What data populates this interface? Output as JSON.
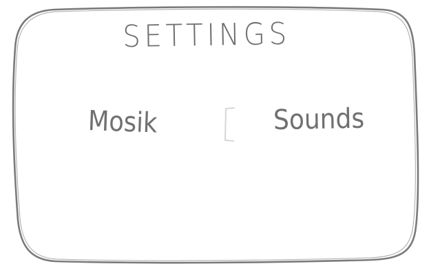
{
  "settings": {
    "title": "SETTINGS",
    "options": [
      {
        "label": "Mosik"
      },
      {
        "label": "Sounds"
      }
    ]
  },
  "colors": {
    "pencil": "#6e6e6e",
    "faint": "#d0d0d0",
    "background": "#ffffff"
  }
}
